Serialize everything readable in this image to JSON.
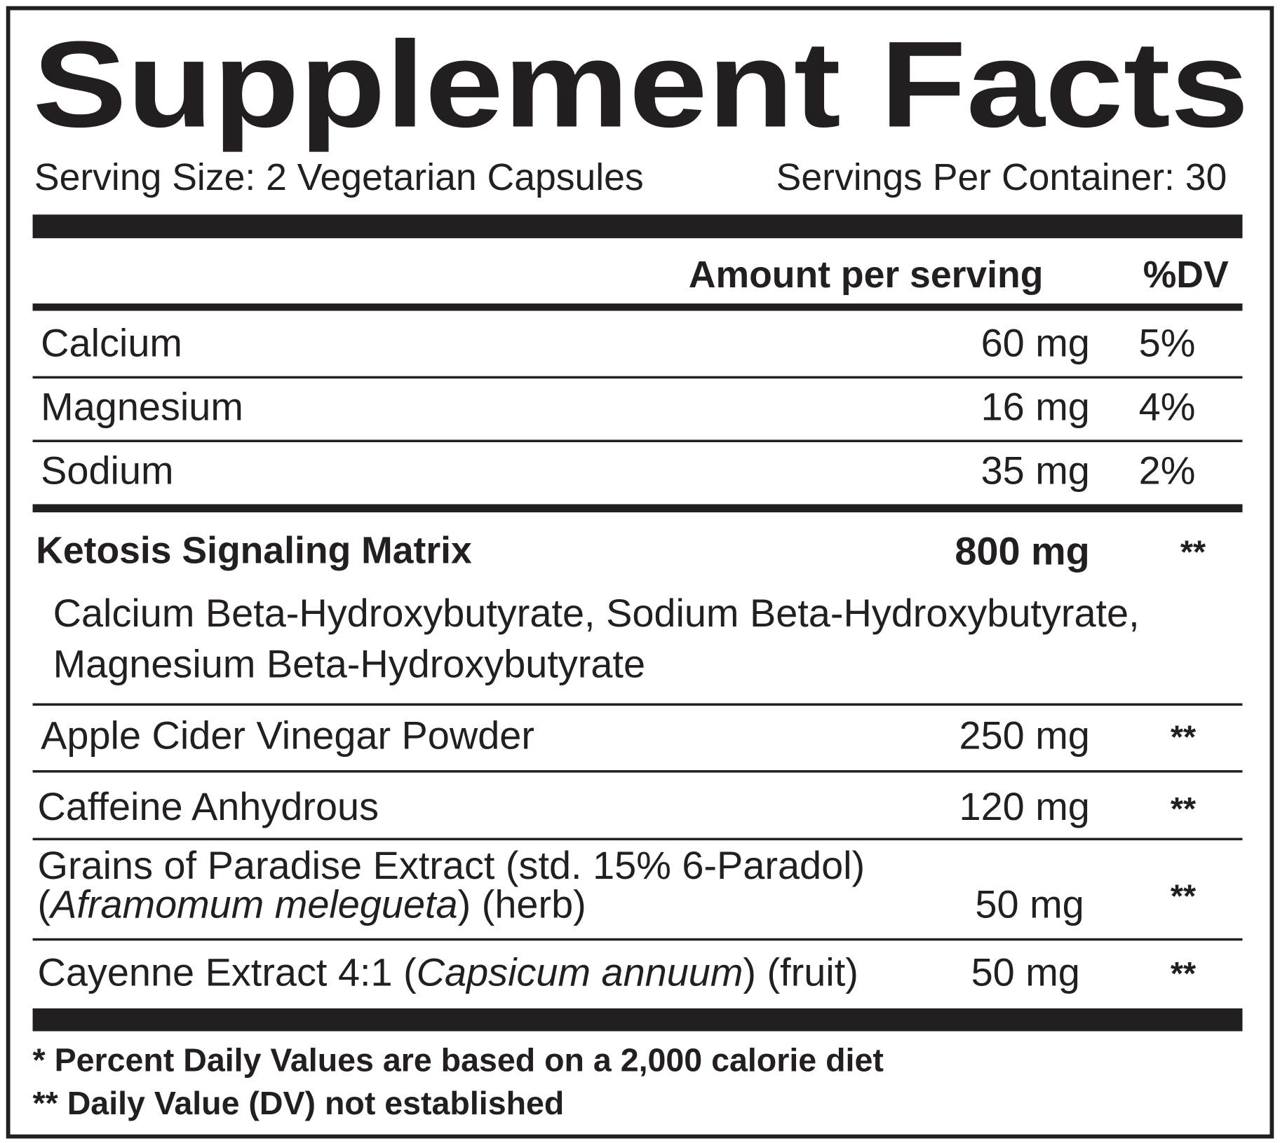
{
  "title": "Supplement Facts",
  "serving_size": "Serving Size: 2 Vegetarian Capsules",
  "servings_per_container": "Servings Per Container: 30",
  "header": {
    "amount": "Amount per serving",
    "dv": "%DV"
  },
  "minerals": [
    {
      "name": "Calcium",
      "amount": "60 mg",
      "dv": "5%"
    },
    {
      "name": "Magnesium",
      "amount": "16 mg",
      "dv": "4%"
    },
    {
      "name": "Sodium",
      "amount": "35 mg",
      "dv": "2%"
    }
  ],
  "matrix": {
    "name": "Ketosis Signaling Matrix",
    "amount": "800 mg",
    "dv": "**",
    "ingredients": [
      "Calcium Beta-Hydroxybutyrate, Sodium Beta-Hydroxybutyrate,",
      "Magnesium Beta-Hydroxybutyrate"
    ]
  },
  "ingredients": [
    {
      "name": [
        [
          {
            "text": "Apple Cider Vinegar Powder"
          }
        ]
      ],
      "amount": "250 mg",
      "dv": "**"
    },
    {
      "name": [
        [
          {
            "text": "Caffeine Anhydrous"
          }
        ]
      ],
      "amount": "120 mg",
      "dv": "**"
    },
    {
      "name": [
        [
          {
            "text": "Grains of Paradise Extract (std. 15% 6-Paradol)"
          }
        ],
        [
          {
            "text": "("
          },
          {
            "text": "Aframomum melegueta",
            "italic": true
          },
          {
            "text": ") (herb)"
          }
        ]
      ],
      "amount": "50 mg",
      "dv": "**"
    },
    {
      "name": [
        [
          {
            "text": "Cayenne Extract 4:1 ("
          },
          {
            "text": "Capsicum annuum",
            "italic": true
          },
          {
            "text": ") (fruit)"
          }
        ]
      ],
      "amount": "50 mg",
      "dv": "**"
    }
  ],
  "footnotes": [
    "* Percent Daily Values are based on a 2,000 calorie diet",
    "** Daily Value (DV) not established"
  ]
}
